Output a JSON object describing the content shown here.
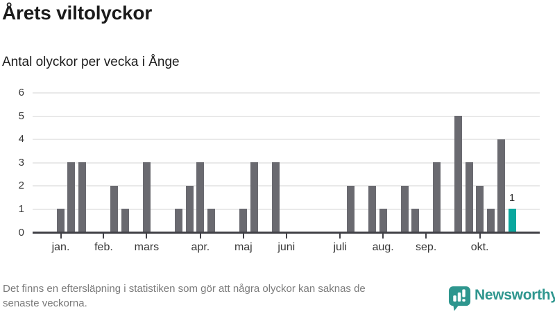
{
  "chart_data": {
    "type": "bar",
    "title": "Årets viltolyckor",
    "subtitle": "Antal olyckor per vecka i Ånge",
    "x_unit": "vecka",
    "ylim": [
      0,
      6
    ],
    "yticks": [
      0,
      1,
      2,
      3,
      4,
      5,
      6
    ],
    "grid": true,
    "values": [
      1,
      3,
      3,
      0,
      0,
      2,
      1,
      0,
      3,
      0,
      0,
      1,
      2,
      3,
      1,
      0,
      0,
      1,
      3,
      0,
      3,
      0,
      0,
      0,
      0,
      0,
      0,
      2,
      0,
      2,
      1,
      0,
      2,
      1,
      0,
      3,
      0,
      5,
      3,
      2,
      1,
      4,
      1
    ],
    "month_ticks": [
      {
        "label": "jan.",
        "week": 0
      },
      {
        "label": "feb.",
        "week": 4
      },
      {
        "label": "mars",
        "week": 8
      },
      {
        "label": "apr.",
        "week": 13
      },
      {
        "label": "maj",
        "week": 17
      },
      {
        "label": "juni",
        "week": 21
      },
      {
        "label": "juli",
        "week": 26
      },
      {
        "label": "aug.",
        "week": 30
      },
      {
        "label": "sep.",
        "week": 34
      },
      {
        "label": "okt.",
        "week": 39
      }
    ],
    "highlight": {
      "index": 42,
      "value": 1,
      "label": "1"
    },
    "colors": {
      "bar": "#6a6a70",
      "highlight": "#0aa79e",
      "grid": "#e9e9e9",
      "axis": "#404046",
      "label": "#383838"
    }
  },
  "footer": {
    "note_lines": [
      "Det finns en eftersläpning i statistiken som gör att några olyckor kan saknas de",
      "senaste veckorna."
    ],
    "brand": "Newsworthy",
    "brand_color": "#2e968e"
  }
}
